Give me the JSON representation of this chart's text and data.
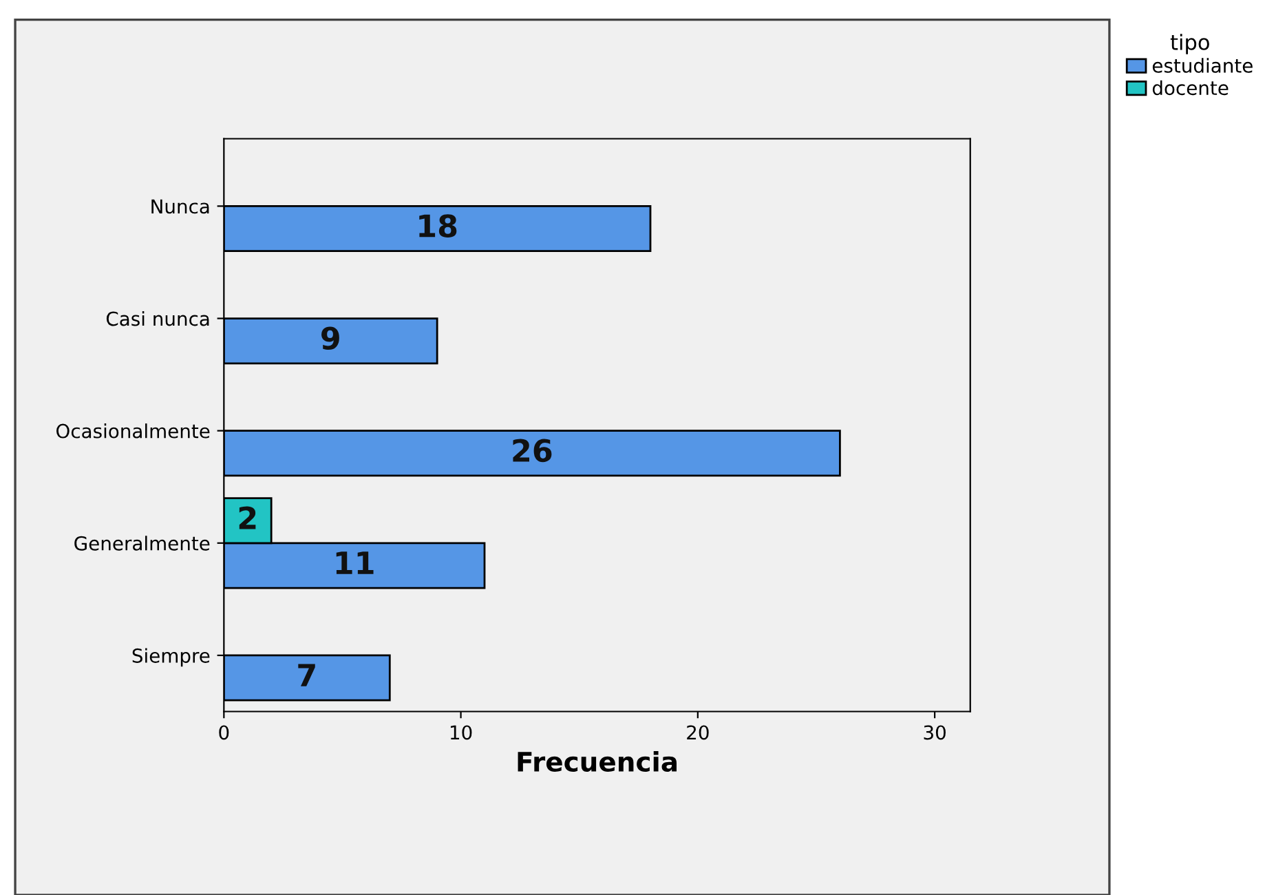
{
  "chart_data": {
    "type": "bar",
    "orientation": "horizontal",
    "xlabel": "Frecuencia",
    "legend_title": "tipo",
    "categories": [
      "Nunca",
      "Casi nunca",
      "Ocasionalmente",
      "Generalmente",
      "Siempre"
    ],
    "series": [
      {
        "name": "estudiante",
        "color": "#5596e6",
        "values": [
          18,
          9,
          26,
          11,
          7
        ]
      },
      {
        "name": "docente",
        "color": "#22c4c4",
        "values": [
          null,
          null,
          null,
          2,
          null
        ]
      }
    ],
    "xlim": [
      0,
      31.5
    ],
    "xticks": [
      0,
      10,
      20,
      30
    ],
    "grid": false,
    "legend": "top right",
    "data_labels": true
  }
}
